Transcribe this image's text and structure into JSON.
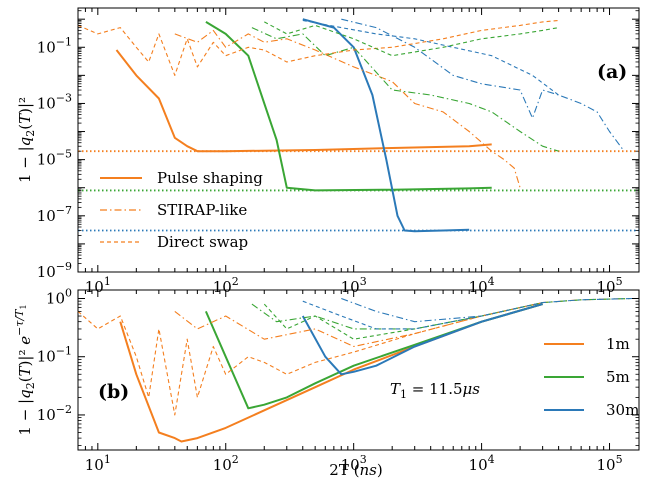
{
  "figure": {
    "xlabel": "2T (ns)",
    "colors": {
      "orange": "#f47f1f",
      "green": "#3aa635",
      "blue": "#2b79b8"
    }
  },
  "chart_data": [
    {
      "type": "line",
      "panel_label": "(a)",
      "ylabel": "1 − |q2(T)|²",
      "xscale": "log",
      "yscale": "log",
      "xlim": [
        7,
        170000
      ],
      "ylim": [
        1e-09,
        2.5
      ],
      "xticks": [
        10,
        100,
        1000,
        10000,
        100000
      ],
      "xticklabels": [
        "10^1",
        "10^2",
        "10^3",
        "10^4",
        "10^5"
      ],
      "yticks": [
        1e-09,
        1e-07,
        1e-05,
        0.001,
        0.1
      ],
      "yticklabels": [
        "10^-9",
        "10^-7",
        "10^-5",
        "10^-3",
        "10^-1"
      ],
      "legend": [
        "Pulse shaping",
        "STIRAP-like",
        "Direct swap"
      ],
      "legend_position": "lower-left",
      "hlines": [
        {
          "color": "orange",
          "y": 2e-05
        },
        {
          "color": "green",
          "y": 8e-07
        },
        {
          "color": "blue",
          "y": 3e-08
        }
      ],
      "series": [
        {
          "group": "Pulse shaping",
          "color": "orange",
          "style": "solid",
          "x": [
            14,
            20,
            30,
            40,
            50,
            60,
            100,
            500,
            2000,
            8000,
            12000
          ],
          "y": [
            0.08,
            0.01,
            0.0015,
            6e-05,
            3e-05,
            2e-05,
            2e-05,
            2.2e-05,
            2.6e-05,
            3e-05,
            3.5e-05
          ]
        },
        {
          "group": "Pulse shaping",
          "color": "green",
          "style": "solid",
          "x": [
            70,
            100,
            150,
            200,
            250,
            300,
            500,
            2000,
            8000,
            12000
          ],
          "y": [
            0.8,
            0.3,
            0.05,
            0.001,
            5e-05,
            1e-06,
            8e-07,
            8.5e-07,
            9.5e-07,
            1e-06
          ]
        },
        {
          "group": "Pulse shaping",
          "color": "blue",
          "style": "solid",
          "x": [
            400,
            700,
            1000,
            1400,
            1800,
            2200,
            2500,
            3000,
            5000,
            8000
          ],
          "y": [
            1,
            0.5,
            0.1,
            0.002,
            1e-05,
            1e-07,
            3e-08,
            2.8e-08,
            3e-08,
            3.2e-08
          ]
        },
        {
          "group": "STIRAP-like",
          "color": "orange",
          "style": "dashdot",
          "x": [
            40,
            60,
            80,
            100,
            150,
            200,
            300,
            500,
            1000,
            2000,
            3000,
            5000,
            8000,
            12000,
            15000,
            18000,
            20000
          ],
          "y": [
            0.3,
            0.15,
            0.4,
            0.1,
            0.3,
            0.15,
            0.2,
            0.08,
            0.02,
            0.006,
            0.001,
            0.0005,
            0.0001,
            2e-05,
            1e-05,
            5e-06,
            1e-06
          ]
        },
        {
          "group": "STIRAP-like",
          "color": "green",
          "style": "dashdot",
          "x": [
            160,
            250,
            400,
            600,
            1000,
            2000,
            4000,
            8000,
            12000,
            20000,
            30000,
            40000
          ],
          "y": [
            0.5,
            0.2,
            0.3,
            0.05,
            0.1,
            0.003,
            0.002,
            0.001,
            0.0005,
            0.0001,
            3e-05,
            2e-05
          ]
        },
        {
          "group": "STIRAP-like",
          "color": "blue",
          "style": "dashdot",
          "x": [
            800,
            1500,
            3000,
            6000,
            10000,
            20000,
            25000,
            30000,
            40000,
            60000,
            80000,
            100000,
            130000
          ],
          "y": [
            1,
            0.5,
            0.1,
            0.01,
            0.005,
            0.003,
            0.0003,
            0.003,
            0.002,
            0.001,
            0.0005,
            0.0001,
            2e-05
          ]
        },
        {
          "group": "Direct swap",
          "color": "orange",
          "style": "dashed",
          "x": [
            7,
            10,
            15,
            20,
            25,
            30,
            40,
            50,
            60,
            80,
            100,
            150,
            200,
            300,
            500,
            1000,
            2000,
            5000,
            10000,
            20000,
            30000,
            40000
          ],
          "y": [
            0.6,
            0.3,
            0.5,
            0.1,
            0.03,
            0.3,
            0.01,
            0.2,
            0.02,
            0.15,
            0.05,
            0.1,
            0.08,
            0.03,
            0.05,
            0.08,
            0.1,
            0.2,
            0.4,
            0.6,
            0.8,
            0.9
          ]
        },
        {
          "group": "Direct swap",
          "color": "green",
          "style": "dashed",
          "x": [
            200,
            300,
            500,
            1000,
            2000,
            5000,
            10000,
            20000,
            30000,
            40000
          ],
          "y": [
            0.8,
            0.3,
            0.6,
            0.2,
            0.05,
            0.1,
            0.2,
            0.3,
            0.4,
            0.5
          ]
        },
        {
          "group": "Direct swap",
          "color": "blue",
          "style": "dashed",
          "x": [
            400,
            800,
            1500,
            3000,
            6000,
            12000,
            25000,
            40000
          ],
          "y": [
            0.9,
            0.5,
            0.3,
            0.2,
            0.1,
            0.05,
            0.01,
            0.002
          ]
        }
      ]
    },
    {
      "type": "line",
      "panel_label": "(b)",
      "ylabel": "1 − |q2(T)|² e^(−τ/T1)",
      "annotation": "T1 = 11.5μs",
      "xscale": "log",
      "yscale": "log",
      "xlim": [
        7,
        170000
      ],
      "ylim": [
        0.0025,
        1.4
      ],
      "xticks": [
        10,
        100,
        1000,
        10000,
        100000
      ],
      "xticklabels": [
        "10^1",
        "10^2",
        "10^3",
        "10^4",
        "10^5"
      ],
      "yticks": [
        0.01,
        0.1,
        1
      ],
      "yticklabels": [
        "10^-2",
        "10^-1",
        "10^0"
      ],
      "legend": [
        "1m",
        "5m",
        "30m"
      ],
      "legend_position": "lower-right",
      "series": [
        {
          "group": "1m",
          "color": "orange",
          "style": "solid",
          "x": [
            15,
            20,
            30,
            40,
            45,
            60,
            100,
            200,
            500,
            1000,
            3000,
            10000,
            30000
          ],
          "y": [
            0.4,
            0.05,
            0.005,
            0.004,
            0.0035,
            0.004,
            0.006,
            0.012,
            0.03,
            0.06,
            0.15,
            0.4,
            0.8
          ]
        },
        {
          "group": "5m",
          "color": "green",
          "style": "solid",
          "x": [
            70,
            100,
            150,
            200,
            300,
            500,
            1000,
            3000,
            10000,
            30000
          ],
          "y": [
            0.6,
            0.1,
            0.013,
            0.015,
            0.02,
            0.035,
            0.07,
            0.16,
            0.4,
            0.8
          ]
        },
        {
          "group": "30m",
          "color": "blue",
          "style": "solid",
          "x": [
            400,
            600,
            800,
            1000,
            1500,
            3000,
            10000,
            30000
          ],
          "y": [
            0.5,
            0.1,
            0.05,
            0.055,
            0.07,
            0.15,
            0.4,
            0.8
          ]
        },
        {
          "group": "1m",
          "color": "orange",
          "style": "dashdot",
          "x": [
            40,
            60,
            100,
            200,
            500,
            1000,
            3000,
            10000,
            30000,
            60000,
            150000
          ],
          "y": [
            0.6,
            0.3,
            0.5,
            0.2,
            0.3,
            0.15,
            0.25,
            0.5,
            0.85,
            0.95,
            1
          ]
        },
        {
          "group": "5m",
          "color": "green",
          "style": "dashdot",
          "x": [
            160,
            250,
            500,
            1000,
            3000,
            10000,
            30000,
            60000,
            150000
          ],
          "y": [
            0.8,
            0.4,
            0.5,
            0.3,
            0.3,
            0.5,
            0.85,
            0.95,
            1
          ]
        },
        {
          "group": "30m",
          "color": "blue",
          "style": "dashdot",
          "x": [
            800,
            1500,
            3000,
            10000,
            30000,
            60000,
            150000
          ],
          "y": [
            1,
            0.6,
            0.4,
            0.5,
            0.85,
            0.95,
            1
          ]
        },
        {
          "group": "1m",
          "color": "orange",
          "style": "dashed",
          "x": [
            7,
            10,
            15,
            20,
            25,
            30,
            40,
            50,
            60,
            80,
            100,
            150,
            200,
            300,
            500,
            1000,
            3000,
            10000,
            30000
          ],
          "y": [
            0.6,
            0.3,
            0.5,
            0.1,
            0.02,
            0.3,
            0.01,
            0.2,
            0.02,
            0.15,
            0.05,
            0.1,
            0.08,
            0.05,
            0.08,
            0.12,
            0.25,
            0.5,
            0.85
          ]
        },
        {
          "group": "5m",
          "color": "green",
          "style": "dashed",
          "x": [
            200,
            300,
            500,
            1000,
            3000,
            10000,
            30000
          ],
          "y": [
            0.8,
            0.3,
            0.5,
            0.2,
            0.3,
            0.5,
            0.85
          ]
        },
        {
          "group": "30m",
          "color": "blue",
          "style": "dashed",
          "x": [
            400,
            800,
            1500,
            3000,
            10000,
            30000
          ],
          "y": [
            0.9,
            0.5,
            0.3,
            0.3,
            0.5,
            0.85
          ]
        }
      ]
    }
  ]
}
